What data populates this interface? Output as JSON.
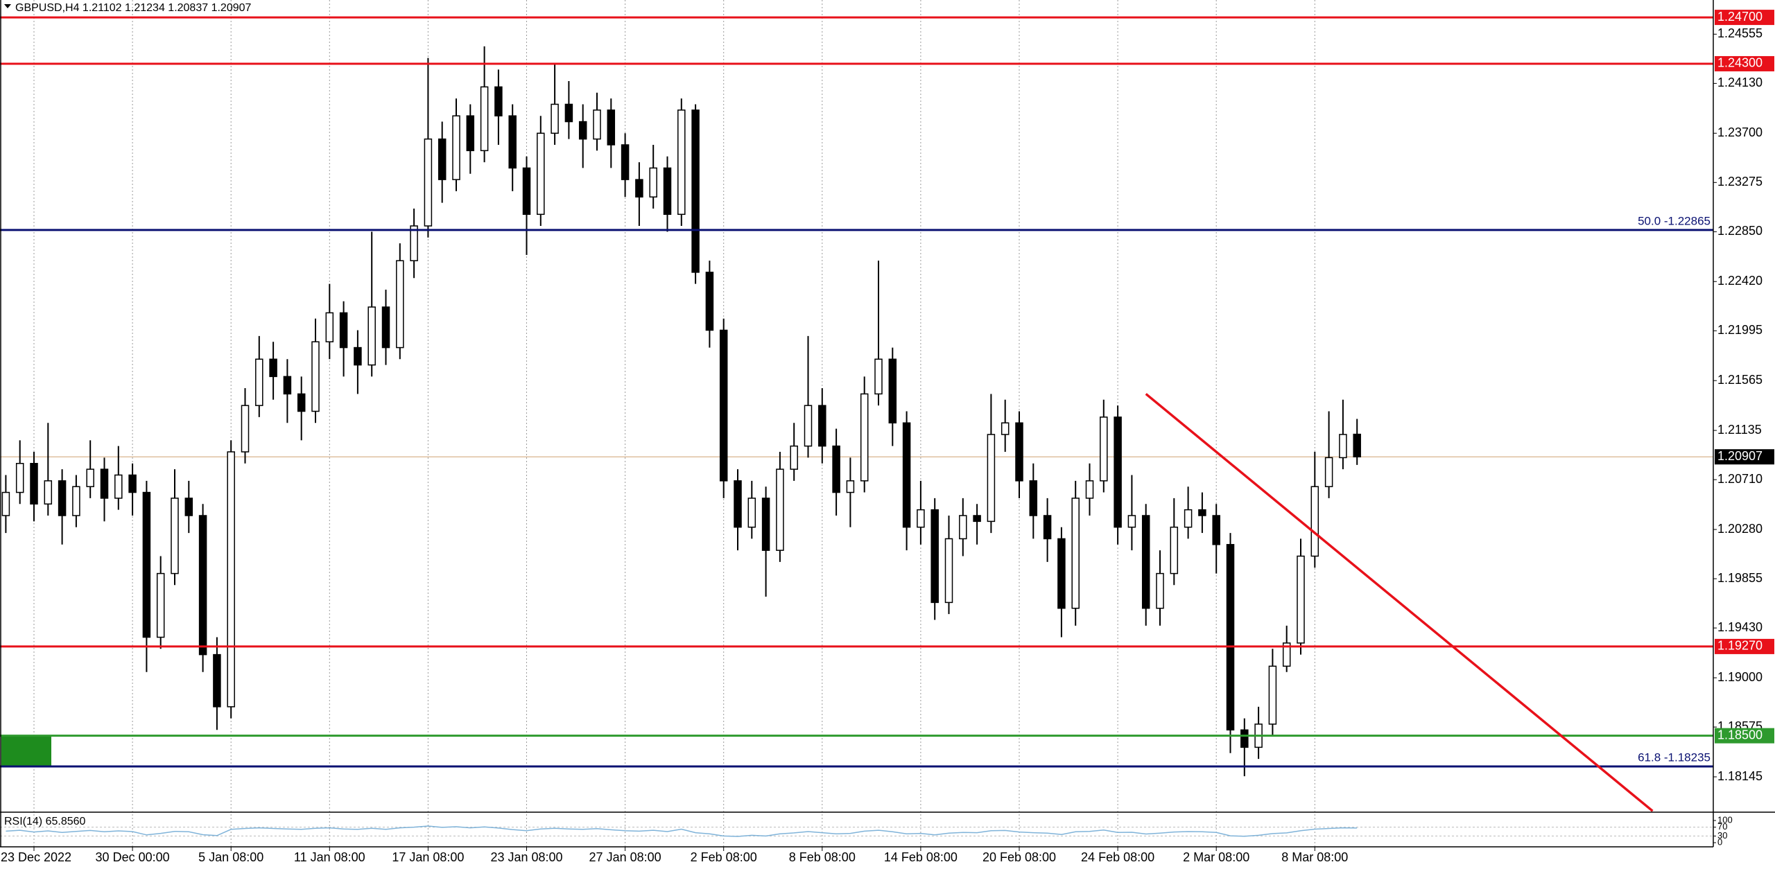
{
  "chart_data": {
    "type": "candlestick",
    "title": "GBPUSD,H4  1.21102 1.21234 1.20837 1.20907",
    "categories": [
      null,
      null,
      "23 Dec 2022",
      null,
      null,
      null,
      null,
      null,
      null,
      "30 Dec 00:00",
      null,
      null,
      null,
      null,
      null,
      null,
      "5 Jan 08:00",
      null,
      null,
      null,
      null,
      null,
      null,
      "11 Jan 08:00",
      null,
      null,
      null,
      null,
      null,
      null,
      "17 Jan 08:00",
      null,
      null,
      null,
      null,
      null,
      null,
      "23 Jan 08:00",
      null,
      null,
      null,
      null,
      null,
      null,
      "27 Jan 08:00",
      null,
      null,
      null,
      null,
      null,
      null,
      "2 Feb 08:00",
      null,
      null,
      null,
      null,
      null,
      null,
      "8 Feb 08:00",
      null,
      null,
      null,
      null,
      null,
      null,
      "14 Feb 08:00",
      null,
      null,
      null,
      null,
      null,
      null,
      "20 Feb 08:00",
      null,
      null,
      null,
      null,
      null,
      null,
      "24 Feb 08:00",
      null,
      null,
      null,
      null,
      null,
      null,
      "2 Mar 08:00",
      null,
      null,
      null,
      null,
      null,
      null,
      "8 Mar 08:00",
      null,
      null,
      null
    ],
    "open": [
      1.204,
      1.206,
      1.2085,
      1.205,
      1.207,
      1.204,
      1.2065,
      1.208,
      1.2055,
      1.2075,
      1.206,
      1.1935,
      1.199,
      1.2055,
      1.204,
      1.192,
      1.1875,
      1.2095,
      1.2135,
      1.2175,
      1.216,
      1.2145,
      1.213,
      1.219,
      1.2215,
      1.2185,
      1.217,
      1.222,
      1.2185,
      1.226,
      1.229,
      1.2365,
      1.233,
      1.2385,
      1.2355,
      1.241,
      1.2385,
      1.234,
      1.23,
      1.237,
      1.2395,
      1.238,
      1.2365,
      1.239,
      1.236,
      1.233,
      1.2315,
      1.234,
      1.23,
      1.239,
      1.225,
      1.22,
      1.207,
      1.203,
      1.2055,
      1.201,
      1.208,
      1.21,
      1.2135,
      1.21,
      1.206,
      1.207,
      1.2145,
      1.2175,
      1.212,
      1.203,
      1.2045,
      1.1965,
      1.202,
      1.204,
      1.2035,
      1.211,
      1.212,
      1.207,
      1.204,
      1.202,
      1.196,
      1.2055,
      1.207,
      1.2125,
      1.203,
      1.204,
      1.196,
      1.199,
      1.203,
      1.2045,
      1.204,
      1.2015,
      1.1855,
      1.184,
      1.186,
      1.191,
      1.193,
      1.2005,
      1.2065,
      1.209,
      1.21102
    ],
    "high": [
      1.2075,
      1.2105,
      1.2095,
      1.212,
      1.208,
      1.2075,
      1.2105,
      1.209,
      1.21,
      1.2085,
      1.207,
      1.2005,
      1.208,
      1.207,
      1.205,
      1.1935,
      1.2105,
      1.215,
      1.2195,
      1.219,
      1.2175,
      1.216,
      1.221,
      1.224,
      1.2225,
      1.22,
      1.2285,
      1.2235,
      1.2275,
      1.2305,
      1.2435,
      1.238,
      1.24,
      1.2395,
      1.2445,
      1.2425,
      1.2395,
      1.235,
      1.2385,
      1.243,
      1.2415,
      1.2395,
      1.2405,
      1.24,
      1.237,
      1.2345,
      1.236,
      1.235,
      1.24,
      1.2395,
      1.226,
      1.221,
      1.208,
      1.207,
      1.2065,
      1.2095,
      1.212,
      1.2195,
      1.215,
      1.2115,
      1.209,
      1.216,
      1.226,
      1.2185,
      1.213,
      1.207,
      1.2055,
      1.204,
      1.2055,
      1.205,
      1.2145,
      1.214,
      1.213,
      1.2085,
      1.2055,
      1.203,
      1.207,
      1.2085,
      1.214,
      1.2135,
      1.2075,
      1.205,
      1.201,
      1.2055,
      1.2065,
      1.206,
      1.205,
      1.2025,
      1.1865,
      1.1875,
      1.1925,
      1.1945,
      1.202,
      1.2095,
      1.213,
      1.214,
      1.21234
    ],
    "low": [
      1.2025,
      1.205,
      1.2035,
      1.204,
      1.2015,
      1.203,
      1.2055,
      1.2035,
      1.2045,
      1.204,
      1.1905,
      1.1925,
      1.198,
      1.2025,
      1.1905,
      1.1855,
      1.1865,
      1.2085,
      1.2125,
      1.214,
      1.212,
      1.2105,
      1.212,
      1.2175,
      1.216,
      1.2145,
      1.216,
      1.217,
      1.2175,
      1.2245,
      1.228,
      1.231,
      1.232,
      1.2335,
      1.2345,
      1.236,
      1.232,
      1.2265,
      1.229,
      1.236,
      1.2365,
      1.234,
      1.2355,
      1.234,
      1.2315,
      1.229,
      1.2305,
      1.2285,
      1.229,
      1.224,
      1.2185,
      1.2055,
      1.201,
      1.202,
      1.197,
      1.2,
      1.207,
      1.209,
      1.2085,
      1.204,
      1.203,
      1.206,
      1.2135,
      1.21,
      1.201,
      1.2015,
      1.195,
      1.1955,
      1.2005,
      1.2015,
      1.2025,
      1.2095,
      1.2055,
      1.202,
      1.2,
      1.1935,
      1.1945,
      1.204,
      1.206,
      1.2015,
      1.201,
      1.1945,
      1.1945,
      1.198,
      1.202,
      1.2025,
      1.199,
      1.1835,
      1.1815,
      1.183,
      1.185,
      1.1905,
      1.192,
      1.1995,
      1.2055,
      1.208,
      1.20837
    ],
    "close": [
      1.206,
      1.2085,
      1.205,
      1.207,
      1.204,
      1.2065,
      1.208,
      1.2055,
      1.2075,
      1.206,
      1.1935,
      1.199,
      1.2055,
      1.204,
      1.192,
      1.1875,
      1.2095,
      1.2135,
      1.2175,
      1.216,
      1.2145,
      1.213,
      1.219,
      1.2215,
      1.2185,
      1.217,
      1.222,
      1.2185,
      1.226,
      1.229,
      1.2365,
      1.233,
      1.2385,
      1.2355,
      1.241,
      1.2385,
      1.234,
      1.23,
      1.237,
      1.2395,
      1.238,
      1.2365,
      1.239,
      1.236,
      1.233,
      1.2315,
      1.234,
      1.23,
      1.239,
      1.225,
      1.22,
      1.207,
      1.203,
      1.2055,
      1.201,
      1.208,
      1.21,
      1.2135,
      1.21,
      1.206,
      1.207,
      1.2145,
      1.2175,
      1.212,
      1.203,
      1.2045,
      1.1965,
      1.202,
      1.204,
      1.2035,
      1.211,
      1.212,
      1.207,
      1.204,
      1.202,
      1.196,
      1.2055,
      1.207,
      1.2125,
      1.203,
      1.204,
      1.196,
      1.199,
      1.203,
      1.2045,
      1.204,
      1.2015,
      1.1855,
      1.184,
      1.186,
      1.191,
      1.193,
      1.2005,
      1.2065,
      1.209,
      1.211,
      1.20907
    ],
    "up_color": "#ffffff",
    "down_color": "#000000",
    "ylim": [
      1.1784,
      1.2485
    ],
    "yticks": [
      1.24555,
      {
        "value": 1.2413,
        "label": "1.24130"
      },
      {
        "value": 1.237,
        "label": "1.23700"
      },
      1.23275,
      {
        "value": 1.2285,
        "label": "1.22850"
      },
      {
        "value": 1.2242,
        "label": "1.22420"
      },
      1.21995,
      1.21565,
      1.21135,
      {
        "value": 1.2071,
        "label": "1.20710"
      },
      {
        "value": 1.2028,
        "label": "1.20280"
      },
      1.19855,
      {
        "value": 1.1943,
        "label": "1.19430"
      },
      {
        "value": 1.19,
        "label": "1.19000"
      },
      1.18575,
      1.18145
    ],
    "grid": true,
    "levels": [
      {
        "value": 1.247,
        "label": "1.24700",
        "color": "#e8111a"
      },
      {
        "value": 1.243,
        "label": "1.24300",
        "color": "#e8111a"
      },
      {
        "value": 1.1927,
        "label": "1.19270",
        "color": "#e8111a"
      },
      {
        "value": 1.185,
        "label": "1.18500",
        "color": "#2e9a2e"
      }
    ],
    "fib_levels": [
      {
        "value": 1.22865,
        "text": "50.0 -1.22865",
        "color": "#0a1172"
      },
      {
        "value": 1.18235,
        "text": "61.8 -1.18235",
        "color": "#0a1172"
      }
    ],
    "zone": {
      "from": 1.18235,
      "to": 1.185,
      "color": "#1e8c1e"
    },
    "current_price": {
      "value": 1.20907,
      "label": "1.20907",
      "color": "#000000"
    },
    "trendline": {
      "points": [
        [
          81,
          1.2145
        ],
        [
          117,
          1.1785
        ]
      ],
      "color": "#e8111a"
    },
    "rsi": {
      "title": "RSI(14) 65.8560",
      "color": "#7fb3d9",
      "ylim": [
        0,
        100
      ],
      "yticks": [
        100,
        70,
        30,
        0
      ],
      "values": [
        52,
        56,
        48,
        53,
        46,
        51,
        55,
        49,
        53,
        50,
        35,
        42,
        51,
        49,
        36,
        32,
        60,
        64,
        67,
        64,
        62,
        60,
        65,
        67,
        62,
        60,
        65,
        60,
        67,
        70,
        75,
        69,
        72,
        67,
        71,
        66,
        59,
        54,
        62,
        65,
        62,
        60,
        63,
        58,
        54,
        52,
        56,
        50,
        61,
        45,
        40,
        30,
        28,
        33,
        30,
        40,
        44,
        50,
        45,
        40,
        42,
        52,
        56,
        49,
        40,
        42,
        35,
        43,
        46,
        45,
        54,
        55,
        48,
        45,
        43,
        37,
        49,
        51,
        57,
        46,
        47,
        39,
        43,
        48,
        50,
        49,
        46,
        31,
        29,
        33,
        41,
        44,
        54,
        61,
        64,
        67,
        65.856
      ]
    }
  }
}
